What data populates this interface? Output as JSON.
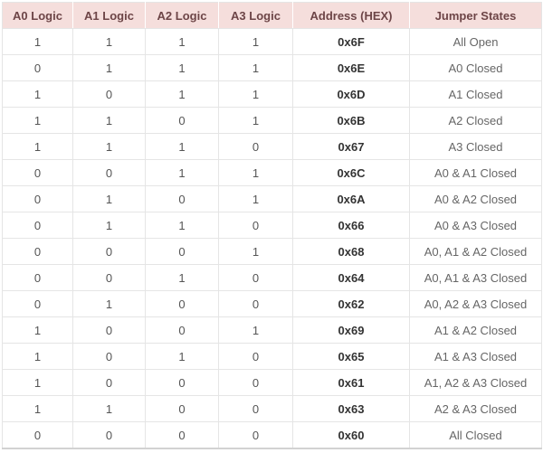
{
  "table": {
    "columns": [
      "A0 Logic",
      "A1 Logic",
      "A2 Logic",
      "A3 Logic",
      "Address (HEX)",
      "Jumper States"
    ],
    "rows": [
      [
        "1",
        "1",
        "1",
        "1",
        "0x6F",
        "All Open"
      ],
      [
        "0",
        "1",
        "1",
        "1",
        "0x6E",
        "A0 Closed"
      ],
      [
        "1",
        "0",
        "1",
        "1",
        "0x6D",
        "A1 Closed"
      ],
      [
        "1",
        "1",
        "0",
        "1",
        "0x6B",
        "A2 Closed"
      ],
      [
        "1",
        "1",
        "1",
        "0",
        "0x67",
        "A3 Closed"
      ],
      [
        "0",
        "0",
        "1",
        "1",
        "0x6C",
        "A0 & A1 Closed"
      ],
      [
        "0",
        "1",
        "0",
        "1",
        "0x6A",
        "A0 & A2 Closed"
      ],
      [
        "0",
        "1",
        "1",
        "0",
        "0x66",
        "A0 & A3 Closed"
      ],
      [
        "0",
        "0",
        "0",
        "1",
        "0x68",
        "A0, A1 & A2 Closed"
      ],
      [
        "0",
        "0",
        "1",
        "0",
        "0x64",
        "A0, A1 & A3 Closed"
      ],
      [
        "0",
        "1",
        "0",
        "0",
        "0x62",
        "A0, A2 & A3 Closed"
      ],
      [
        "1",
        "0",
        "0",
        "1",
        "0x69",
        "A1 & A2 Closed"
      ],
      [
        "1",
        "0",
        "1",
        "0",
        "0x65",
        "A1 & A3 Closed"
      ],
      [
        "1",
        "0",
        "0",
        "0",
        "0x61",
        "A1, A2 & A3 Closed"
      ],
      [
        "1",
        "1",
        "0",
        "0",
        "0x63",
        "A2 & A3 Closed"
      ],
      [
        "0",
        "0",
        "0",
        "0",
        "0x60",
        "All Closed"
      ]
    ]
  },
  "colors": {
    "header_bg": "#f5dedc",
    "header_text": "#6d4547",
    "body_border": "#e5e5e5",
    "logic_text": "#555555",
    "address_text": "#333333",
    "jumper_text": "#666666"
  }
}
